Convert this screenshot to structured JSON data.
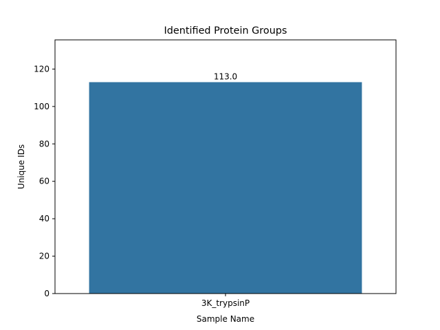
{
  "chart_data": {
    "type": "bar",
    "title": "Identified Protein Groups",
    "xlabel": "Sample Name",
    "ylabel": "Unique IDs",
    "categories": [
      "3K_trypsinP"
    ],
    "values": [
      113.0
    ],
    "value_labels": [
      "113.0"
    ],
    "ylim": [
      0,
      135.6
    ],
    "yticks": [
      0,
      20,
      40,
      60,
      80,
      100,
      120
    ],
    "grid": false,
    "bar_color": "#3274a1"
  }
}
